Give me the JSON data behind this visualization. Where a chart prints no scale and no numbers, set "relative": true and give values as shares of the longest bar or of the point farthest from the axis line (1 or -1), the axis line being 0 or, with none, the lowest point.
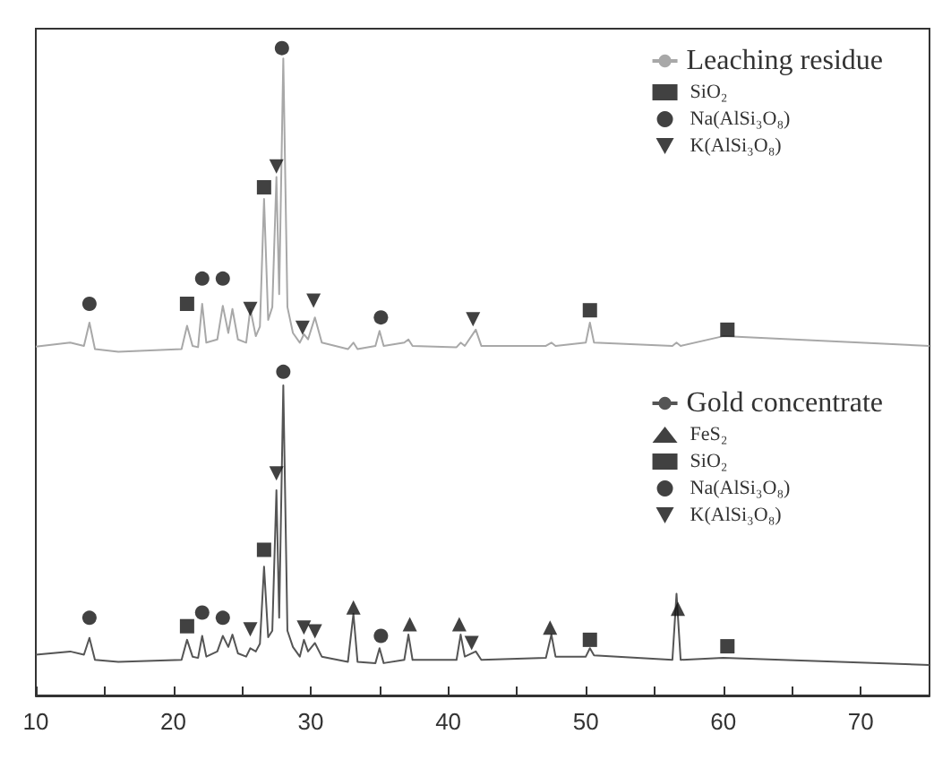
{
  "chart_data": {
    "type": "line",
    "relative": true,
    "xlim": [
      10,
      75
    ],
    "xticks": [
      10,
      {
        "value": 15,
        "label": null
      },
      20,
      {
        "value": 25,
        "label": null
      },
      30,
      {
        "value": 35,
        "label": null
      },
      40,
      {
        "value": 45,
        "label": null
      },
      50,
      {
        "value": 55,
        "label": null
      },
      60,
      {
        "value": 65,
        "label": null
      },
      70
    ],
    "grid": false,
    "legend": "top right",
    "series": [
      {
        "name": "Leaching residue",
        "color": "#a8a8a8",
        "marker": "none",
        "x": [
          10,
          12.5,
          13.5,
          13.9,
          14.3,
          16,
          20.6,
          21,
          21.4,
          21.8,
          22.1,
          22.4,
          23.2,
          23.6,
          24,
          24.3,
          24.7,
          25.3,
          25.6,
          26,
          26.3,
          26.6,
          26.9,
          27.2,
          27.5,
          27.7,
          28,
          28.3,
          28.7,
          29.2,
          29.5,
          29.8,
          30.3,
          30.8,
          32.7,
          33.1,
          33.4,
          34.7,
          35,
          35.3,
          36.8,
          37.1,
          37.4,
          40.6,
          40.9,
          41.2,
          42,
          42.4,
          47.1,
          47.5,
          47.8,
          50,
          50.3,
          50.6,
          56.3,
          56.6,
          56.9,
          60,
          75
        ],
        "values": [
          0.539,
          0.545,
          0.54,
          0.576,
          0.535,
          0.531,
          0.535,
          0.571,
          0.54,
          0.538,
          0.605,
          0.545,
          0.55,
          0.602,
          0.56,
          0.597,
          0.55,
          0.545,
          0.597,
          0.555,
          0.57,
          0.767,
          0.58,
          0.6,
          0.801,
          0.62,
          0.984,
          0.6,
          0.56,
          0.545,
          0.558,
          0.55,
          0.584,
          0.545,
          0.535,
          0.545,
          0.535,
          0.54,
          0.563,
          0.54,
          0.545,
          0.55,
          0.54,
          0.538,
          0.545,
          0.54,
          0.565,
          0.54,
          0.54,
          0.545,
          0.54,
          0.545,
          0.576,
          0.545,
          0.54,
          0.545,
          0.54,
          0.555,
          0.54
        ]
      },
      {
        "name": "SiO₂",
        "type": "scatter",
        "color": "#111111",
        "marker": "square",
        "x": [
          21.0,
          26.6,
          50.3,
          60.3
        ],
        "values": [
          0.605,
          0.785,
          0.595,
          0.565
        ]
      },
      {
        "name": "Na(AlSi₃O₈)",
        "type": "scatter",
        "color": "#111111",
        "marker": "circle",
        "x": [
          13.9,
          22.1,
          23.6,
          27.9,
          35.1
        ],
        "values": [
          0.605,
          0.644,
          0.644,
          1.0,
          0.584
        ]
      },
      {
        "name": "K(AlSi₃O₈)",
        "type": "scatter",
        "color": "#111111",
        "marker": "triangle-down",
        "x": [
          25.6,
          27.5,
          29.4,
          30.2,
          41.8
        ],
        "values": [
          0.597,
          0.817,
          0.568,
          0.61,
          0.581
        ]
      },
      {
        "name": "Gold concentrate",
        "color": "#555555",
        "marker": "none",
        "x": [
          10,
          12.5,
          13.5,
          13.9,
          14.3,
          16,
          20.6,
          21,
          21.4,
          21.8,
          22.1,
          22.4,
          23.2,
          23.6,
          24,
          24.3,
          24.7,
          25.3,
          25.6,
          26,
          26.3,
          26.6,
          26.9,
          27.2,
          27.5,
          27.7,
          28,
          28.3,
          28.7,
          29.2,
          29.5,
          29.8,
          30.3,
          30.8,
          32.7,
          33.1,
          33.4,
          34.7,
          35,
          35.3,
          36.8,
          37.1,
          37.4,
          40.6,
          40.9,
          41.2,
          42,
          42.4,
          47.1,
          47.5,
          47.8,
          50,
          50.3,
          50.6,
          56.3,
          56.6,
          56.9,
          60,
          75
        ],
        "values": [
          0.063,
          0.068,
          0.063,
          0.089,
          0.055,
          0.052,
          0.055,
          0.086,
          0.06,
          0.058,
          0.092,
          0.06,
          0.068,
          0.092,
          0.075,
          0.094,
          0.065,
          0.06,
          0.073,
          0.068,
          0.08,
          0.199,
          0.09,
          0.1,
          0.317,
          0.12,
          0.479,
          0.1,
          0.075,
          0.06,
          0.086,
          0.068,
          0.081,
          0.06,
          0.052,
          0.126,
          0.052,
          0.05,
          0.073,
          0.05,
          0.055,
          0.094,
          0.055,
          0.055,
          0.094,
          0.06,
          0.068,
          0.055,
          0.058,
          0.094,
          0.06,
          0.06,
          0.073,
          0.062,
          0.055,
          0.157,
          0.055,
          0.058,
          0.047
        ]
      },
      {
        "name": "FeS₂",
        "type": "scatter",
        "color": "#111111",
        "marker": "triangle",
        "x": [
          33.1,
          37.2,
          40.8,
          47.4,
          56.7
        ],
        "values": [
          0.136,
          0.11,
          0.11,
          0.105,
          0.134
        ]
      },
      {
        "name": "SiO₂",
        "type": "scatter",
        "color": "#111111",
        "marker": "square",
        "x": [
          21.0,
          26.6,
          50.3,
          60.3
        ],
        "values": [
          0.107,
          0.225,
          0.086,
          0.076
        ]
      },
      {
        "name": "Na(AlSi₃O₈)",
        "type": "scatter",
        "color": "#111111",
        "marker": "circle",
        "x": [
          13.9,
          22.1,
          23.6,
          28.0,
          35.1
        ],
        "values": [
          0.12,
          0.128,
          0.12,
          0.5,
          0.092
        ]
      },
      {
        "name": "K(AlSi₃O₈)",
        "type": "scatter",
        "color": "#111111",
        "marker": "triangle-down",
        "x": [
          25.6,
          27.5,
          29.5,
          30.3,
          41.7
        ],
        "values": [
          0.102,
          0.343,
          0.105,
          0.099,
          0.081
        ]
      }
    ]
  }
}
